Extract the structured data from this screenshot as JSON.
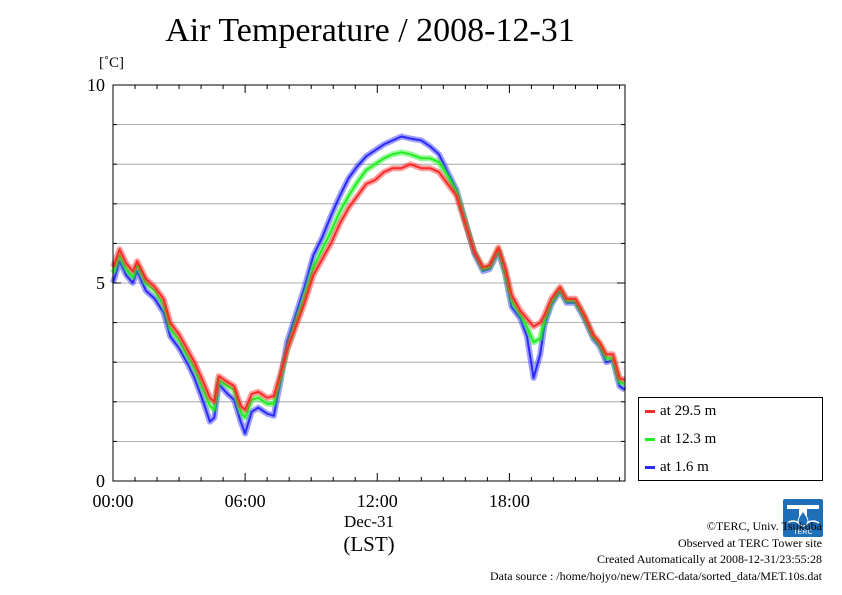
{
  "title": "Air Temperature / 2008-12-31",
  "unit_label": "[˚C]",
  "legend": [
    "at 29.5 m",
    "at 12.3 m",
    "at 1.6 m"
  ],
  "credits": [
    "©TERC, Univ. Tsukuba",
    "Observed at TERC Tower site",
    "Created Automatically at 2008-12-31/23:55:28",
    "Data source : /home/hojyo/new/TERC-data/sorted_data/MET.10s.dat"
  ],
  "logo_text": "TERC",
  "colors": {
    "series_29_5": "#ff2a2a",
    "series_12_3": "#22ee22",
    "series_1_6": "#2a2aff",
    "grid": "#999999"
  },
  "chart_data": {
    "type": "line",
    "title": "Air Temperature / 2008-12-31",
    "ylabel": "[˚C]",
    "xlabel_lines": [
      "Dec-31",
      "(LST)"
    ],
    "xlim": [
      0,
      23.25
    ],
    "ylim": [
      0,
      10
    ],
    "yticks": [
      0,
      5,
      10
    ],
    "ytick_labels": [
      "0",
      "5",
      "10"
    ],
    "xticks": [
      0,
      6,
      12,
      18
    ],
    "xtick_labels": [
      "00:00",
      "06:00",
      "12:00",
      "18:00"
    ],
    "grid": true,
    "legend_position": "right",
    "series": [
      {
        "name": "at 29.5 m",
        "x": [
          0,
          0.3,
          0.6,
          0.9,
          1.1,
          1.5,
          1.9,
          2.3,
          2.6,
          3.0,
          3.4,
          3.7,
          4.1,
          4.4,
          4.6,
          4.8,
          5.2,
          5.5,
          5.8,
          6.0,
          6.3,
          6.6,
          7.0,
          7.3,
          7.6,
          7.9,
          8.3,
          8.7,
          9.1,
          9.5,
          9.9,
          10.3,
          10.7,
          11.1,
          11.5,
          11.9,
          12.3,
          12.7,
          13.1,
          13.5,
          14.0,
          14.4,
          14.8,
          15.2,
          15.6,
          16.0,
          16.4,
          16.8,
          17.1,
          17.5,
          17.8,
          18.1,
          18.5,
          18.8,
          19.1,
          19.4,
          19.6,
          19.9,
          20.3,
          20.6,
          21.0,
          21.4,
          21.8,
          22.1,
          22.4,
          22.7,
          23.0,
          23.25
        ],
        "values": [
          5.4,
          5.85,
          5.5,
          5.3,
          5.55,
          5.1,
          4.9,
          4.6,
          4.0,
          3.7,
          3.3,
          3.0,
          2.5,
          2.1,
          2.0,
          2.65,
          2.5,
          2.4,
          1.9,
          1.8,
          2.2,
          2.25,
          2.1,
          2.15,
          2.7,
          3.3,
          3.9,
          4.5,
          5.2,
          5.6,
          6.0,
          6.5,
          6.9,
          7.2,
          7.5,
          7.6,
          7.8,
          7.9,
          7.9,
          8.0,
          7.9,
          7.9,
          7.8,
          7.5,
          7.2,
          6.5,
          5.8,
          5.4,
          5.45,
          5.9,
          5.4,
          4.7,
          4.3,
          4.1,
          3.9,
          4.0,
          4.2,
          4.6,
          4.9,
          4.6,
          4.6,
          4.2,
          3.7,
          3.5,
          3.2,
          3.2,
          2.6,
          2.55
        ]
      },
      {
        "name": "at 12.3 m",
        "x": [
          0,
          0.3,
          0.6,
          0.9,
          1.1,
          1.5,
          1.9,
          2.3,
          2.6,
          3.0,
          3.4,
          3.7,
          4.1,
          4.4,
          4.6,
          4.8,
          5.2,
          5.5,
          5.8,
          6.0,
          6.3,
          6.6,
          7.0,
          7.3,
          7.6,
          7.9,
          8.3,
          8.7,
          9.1,
          9.5,
          9.9,
          10.3,
          10.7,
          11.1,
          11.5,
          11.9,
          12.3,
          12.7,
          13.1,
          13.5,
          14.0,
          14.4,
          14.8,
          15.2,
          15.6,
          16.0,
          16.4,
          16.8,
          17.1,
          17.5,
          17.8,
          18.1,
          18.5,
          18.8,
          19.1,
          19.4,
          19.6,
          19.9,
          20.3,
          20.6,
          21.0,
          21.4,
          21.8,
          22.1,
          22.4,
          22.7,
          23.0,
          23.25
        ],
        "values": [
          5.25,
          5.7,
          5.35,
          5.15,
          5.45,
          5.0,
          4.8,
          4.45,
          3.85,
          3.55,
          3.15,
          2.85,
          2.3,
          1.9,
          1.8,
          2.55,
          2.4,
          2.3,
          1.75,
          1.6,
          2.05,
          2.1,
          1.95,
          1.95,
          2.6,
          3.3,
          4.0,
          4.65,
          5.4,
          5.85,
          6.3,
          6.8,
          7.2,
          7.55,
          7.85,
          8.0,
          8.15,
          8.25,
          8.3,
          8.25,
          8.15,
          8.15,
          8.05,
          7.7,
          7.3,
          6.55,
          5.8,
          5.35,
          5.4,
          5.85,
          5.3,
          4.55,
          4.2,
          3.9,
          3.5,
          3.6,
          4.05,
          4.5,
          4.85,
          4.55,
          4.55,
          4.15,
          3.65,
          3.45,
          3.1,
          3.1,
          2.5,
          2.45
        ]
      },
      {
        "name": "at 1.6 m",
        "x": [
          0,
          0.3,
          0.6,
          0.9,
          1.1,
          1.5,
          1.9,
          2.3,
          2.6,
          3.0,
          3.4,
          3.7,
          4.1,
          4.4,
          4.6,
          4.8,
          5.2,
          5.5,
          5.8,
          6.0,
          6.3,
          6.6,
          7.0,
          7.3,
          7.6,
          7.9,
          8.3,
          8.7,
          9.1,
          9.5,
          9.9,
          10.3,
          10.7,
          11.1,
          11.5,
          11.9,
          12.3,
          12.7,
          13.1,
          13.5,
          14.0,
          14.4,
          14.8,
          15.2,
          15.6,
          16.0,
          16.4,
          16.8,
          17.1,
          17.5,
          17.8,
          18.1,
          18.5,
          18.8,
          19.1,
          19.4,
          19.6,
          19.9,
          20.3,
          20.6,
          21.0,
          21.4,
          21.8,
          22.1,
          22.4,
          22.7,
          23.0,
          23.25
        ],
        "values": [
          5.0,
          5.55,
          5.2,
          5.0,
          5.3,
          4.8,
          4.6,
          4.25,
          3.65,
          3.35,
          2.95,
          2.6,
          2.0,
          1.5,
          1.6,
          2.45,
          2.2,
          2.05,
          1.5,
          1.2,
          1.75,
          1.85,
          1.7,
          1.65,
          2.5,
          3.5,
          4.2,
          4.9,
          5.7,
          6.15,
          6.7,
          7.2,
          7.65,
          7.95,
          8.2,
          8.35,
          8.5,
          8.6,
          8.7,
          8.65,
          8.6,
          8.45,
          8.25,
          7.8,
          7.35,
          6.55,
          5.75,
          5.3,
          5.35,
          5.8,
          5.25,
          4.4,
          4.1,
          3.65,
          2.6,
          3.2,
          3.95,
          4.45,
          4.8,
          4.5,
          4.5,
          4.1,
          3.6,
          3.4,
          3.0,
          3.05,
          2.4,
          2.3
        ]
      }
    ]
  }
}
